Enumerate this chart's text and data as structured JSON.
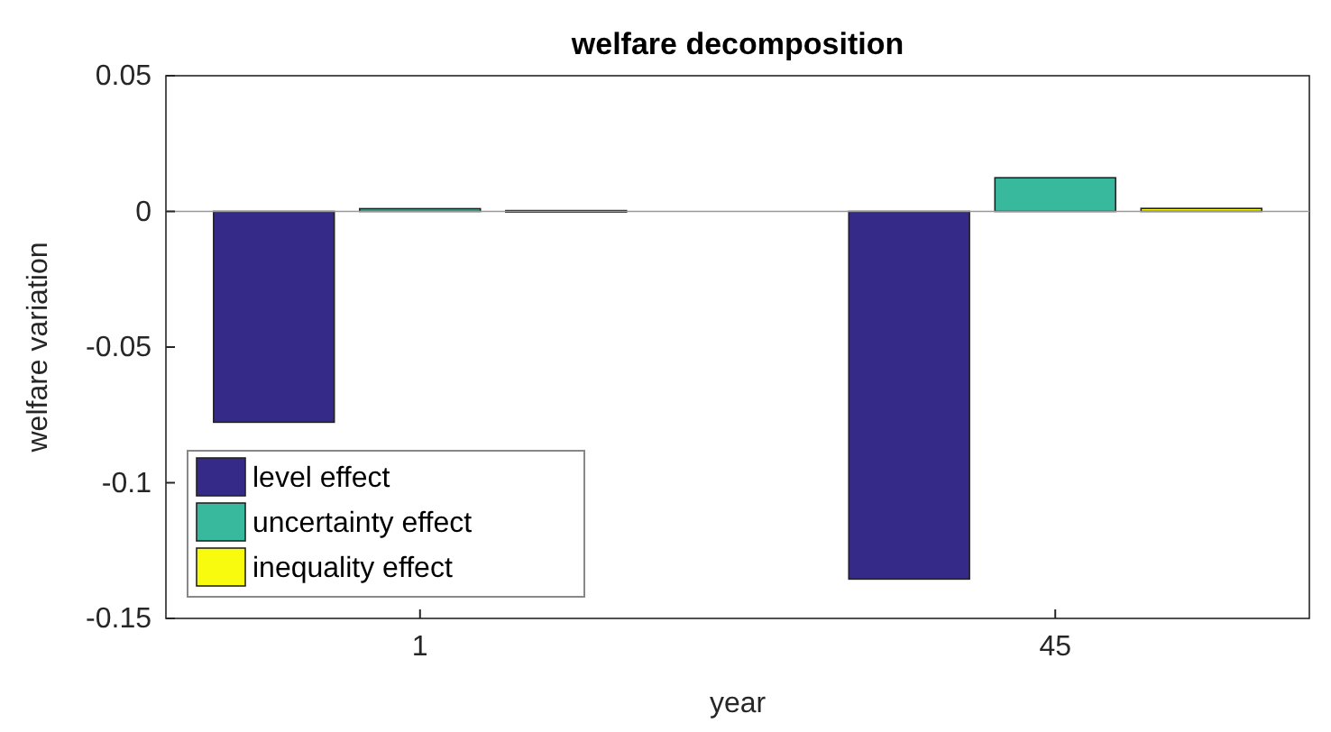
{
  "chart_data": {
    "type": "bar",
    "title": "welfare decomposition",
    "xlabel": "year",
    "ylabel": "welfare variation",
    "categories": [
      "1",
      "45"
    ],
    "series": [
      {
        "name": "level effect",
        "color": "#352a87",
        "values": [
          -0.0777,
          -0.1355
        ]
      },
      {
        "name": "uncertainty effect",
        "color": "#38b99e",
        "values": [
          0.001,
          0.0124
        ]
      },
      {
        "name": "inequality effect",
        "color": "#f9fb0e",
        "values": [
          0.0003,
          0.0011
        ]
      }
    ],
    "ylim": [
      -0.15,
      0.05
    ],
    "yticks": [
      -0.15,
      -0.1,
      -0.05,
      0,
      0.05
    ],
    "legend": "bottom left"
  }
}
